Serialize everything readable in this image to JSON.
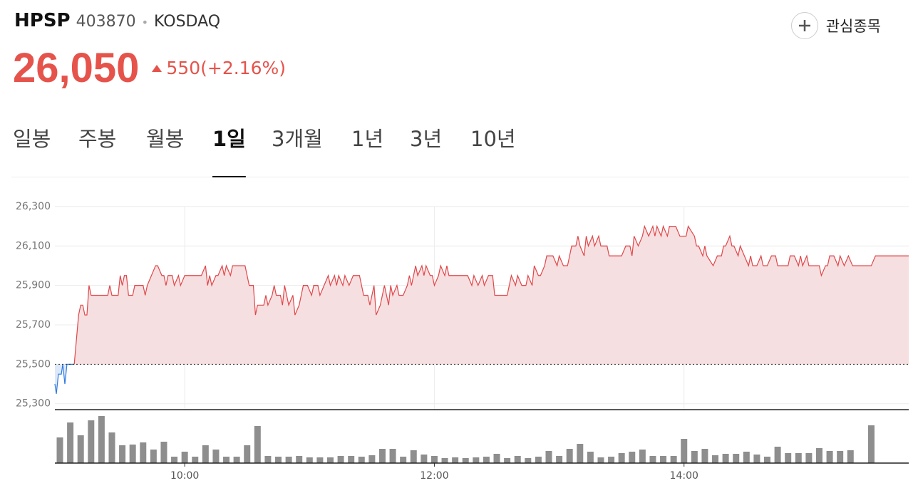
{
  "header": {
    "name": "HPSP",
    "code": "403870",
    "separator": "•",
    "market": "KOSDAQ",
    "price": "26,050",
    "change": "550(+2.16%)",
    "watch": "관심종목"
  },
  "tabs": [
    {
      "label": "일봉"
    },
    {
      "label": "주봉"
    },
    {
      "label": "월봉"
    },
    {
      "label": "1일",
      "selected": true
    },
    {
      "label": "3개월"
    },
    {
      "label": "1년"
    },
    {
      "label": "3년"
    },
    {
      "label": "10년"
    }
  ],
  "chart_data": {
    "type": "line",
    "x": [
      537.6,
      538.3,
      539.3,
      540.7,
      541.4,
      542.4,
      543.4,
      546.9,
      549,
      550,
      551,
      552,
      553,
      554,
      555,
      563,
      564,
      565,
      568,
      569,
      570,
      571,
      572,
      573,
      575,
      576,
      580,
      581,
      582,
      584,
      586,
      587,
      589,
      590,
      591,
      592,
      594,
      595,
      597,
      598,
      600,
      608,
      610,
      611,
      612,
      613,
      615,
      616,
      618,
      619,
      620,
      622,
      623,
      624,
      629,
      631,
      633,
      634,
      635,
      638,
      639,
      640,
      642,
      643,
      644,
      646,
      647,
      648,
      650,
      652,
      653,
      655,
      656,
      657,
      659,
      661,
      662,
      664,
      665,
      667,
      669,
      670,
      672,
      673,
      674,
      676,
      677,
      679,
      681,
      684,
      685,
      686,
      688,
      689,
      691,
      692,
      694,
      695,
      696,
      698,
      699,
      700,
      702,
      703,
      705,
      707,
      708,
      709,
      711,
      712,
      714,
      715,
      716,
      718,
      719,
      720,
      722,
      723,
      725,
      726,
      727,
      729,
      736,
      738,
      739,
      741,
      743,
      744,
      746,
      748,
      749,
      755,
      756,
      757,
      759,
      760,
      762,
      764,
      765,
      767,
      768,
      770,
      771,
      773,
      774,
      777,
      779,
      780,
      782,
      784,
      786,
      788,
      789,
      790,
      792,
      793,
      794,
      796,
      797,
      799,
      800,
      803,
      804,
      810,
      812,
      814,
      815,
      816,
      818,
      820,
      821,
      823,
      825,
      826,
      827,
      829,
      830,
      832,
      833,
      836,
      838,
      841,
      842,
      845,
      846,
      847,
      849,
      850,
      851,
      854,
      856,
      858,
      859,
      860,
      862,
      863,
      864,
      866,
      867,
      869,
      871,
      872,
      873,
      875,
      877,
      878,
      880,
      882,
      884,
      885,
      887,
      890,
      891,
      893,
      895,
      896,
      897,
      899,
      900,
      904,
      905,
      906,
      908,
      909,
      910,
      912,
      914,
      915,
      917,
      919,
      921,
      930,
      932,
      948
    ],
    "values": [
      25400,
      25350,
      25450,
      25450,
      25500,
      25400,
      25500,
      25500,
      25750,
      25800,
      25800,
      25750,
      25750,
      25900,
      25850,
      25850,
      25900,
      25850,
      25850,
      25950,
      25900,
      25950,
      25950,
      25850,
      25850,
      25900,
      25900,
      25850,
      25900,
      25950,
      26000,
      26000,
      25950,
      25950,
      25900,
      25950,
      25950,
      25900,
      25950,
      25900,
      25950,
      25950,
      26000,
      25900,
      25950,
      25900,
      25950,
      25950,
      26000,
      25950,
      26000,
      25950,
      26000,
      26000,
      26000,
      25900,
      25900,
      25750,
      25800,
      25800,
      25850,
      25800,
      25850,
      25900,
      25850,
      25850,
      25800,
      25900,
      25800,
      25850,
      25750,
      25800,
      25850,
      25900,
      25900,
      25850,
      25900,
      25900,
      25850,
      25900,
      25950,
      25900,
      25950,
      25900,
      25950,
      25900,
      25950,
      25900,
      25950,
      25950,
      25900,
      25850,
      25850,
      25800,
      25900,
      25750,
      25800,
      25850,
      25900,
      25800,
      25900,
      25850,
      25900,
      25850,
      25850,
      25900,
      25950,
      25900,
      26000,
      25950,
      26000,
      25950,
      26000,
      25950,
      25950,
      25900,
      25950,
      26000,
      25950,
      26000,
      25950,
      25950,
      25950,
      25900,
      25950,
      25900,
      25950,
      25900,
      25950,
      25950,
      25850,
      25850,
      25900,
      25950,
      25900,
      25950,
      25900,
      25900,
      25950,
      25900,
      26000,
      25950,
      25950,
      26000,
      26050,
      26050,
      26000,
      26050,
      26000,
      26000,
      26100,
      26100,
      26150,
      26100,
      26050,
      26150,
      26100,
      26150,
      26100,
      26150,
      26100,
      26100,
      26050,
      26050,
      26100,
      26100,
      26050,
      26150,
      26100,
      26150,
      26200,
      26150,
      26200,
      26150,
      26200,
      26150,
      26200,
      26150,
      26200,
      26200,
      26150,
      26150,
      26200,
      26150,
      26100,
      26100,
      26050,
      26100,
      26050,
      26000,
      26050,
      26050,
      26100,
      26100,
      26150,
      26100,
      26100,
      26050,
      26100,
      26050,
      26000,
      26050,
      26000,
      26000,
      26050,
      26000,
      26000,
      26050,
      26050,
      26000,
      26000,
      26000,
      26050,
      26050,
      26000,
      26050,
      26000,
      26050,
      26000,
      26000,
      26000,
      25950,
      26000,
      26000,
      26050,
      26050,
      26000,
      26050,
      26000,
      26050,
      26000,
      26000,
      26050,
      26050
    ],
    "base": 25500,
    "up_color": "#e0474a",
    "up_fill": "#f6dfe0",
    "down_color": "#2f7be0",
    "down_fill": "#dde9f8",
    "xlim": [
      537.6,
      948
    ],
    "xticks": [
      {
        "value": 600,
        "label": "10:00"
      },
      {
        "value": 720,
        "label": "12:00"
      },
      {
        "value": 840,
        "label": "14:00"
      }
    ],
    "ylim": [
      25270,
      26390
    ],
    "yticks": [
      {
        "value": 25300,
        "label": "25,300"
      },
      {
        "value": 25500,
        "label": "25,500"
      },
      {
        "value": 25700,
        "label": "25,700"
      },
      {
        "value": 25900,
        "label": "25,900"
      },
      {
        "value": 26100,
        "label": "26,100"
      },
      {
        "value": 26300,
        "label": "26,300"
      }
    ],
    "grid": true,
    "volume": {
      "type": "bar",
      "color": "#8e8e8e",
      "vlim": [
        0,
        70
      ],
      "x": [
        540,
        545,
        550,
        555,
        560,
        565,
        570,
        575,
        580,
        585,
        590,
        595,
        600,
        605,
        610,
        615,
        620,
        625,
        630,
        635,
        640,
        645,
        650,
        655,
        660,
        665,
        670,
        675,
        680,
        685,
        690,
        695,
        700,
        705,
        710,
        715,
        720,
        725,
        730,
        735,
        740,
        745,
        750,
        755,
        760,
        765,
        770,
        775,
        780,
        785,
        790,
        795,
        800,
        805,
        810,
        815,
        820,
        825,
        830,
        835,
        840,
        845,
        850,
        855,
        860,
        865,
        870,
        875,
        880,
        885,
        890,
        895,
        900,
        905,
        910,
        915,
        920,
        930
      ],
      "values": [
        36,
        57,
        39,
        60,
        66,
        43,
        25,
        26,
        29,
        19,
        30,
        9,
        16,
        9,
        25,
        19,
        9,
        9,
        25,
        52,
        10,
        9,
        9,
        10,
        8,
        8,
        8,
        10,
        10,
        9,
        11,
        20,
        20,
        9,
        18,
        12,
        10,
        7,
        8,
        7,
        8,
        9,
        13,
        7,
        10,
        7,
        9,
        17,
        10,
        20,
        27,
        16,
        8,
        9,
        14,
        16,
        19,
        10,
        10,
        10,
        34,
        17,
        20,
        11,
        13,
        13,
        16,
        12,
        9,
        23,
        14,
        14,
        14,
        21,
        17,
        17,
        18,
        53
      ]
    }
  }
}
